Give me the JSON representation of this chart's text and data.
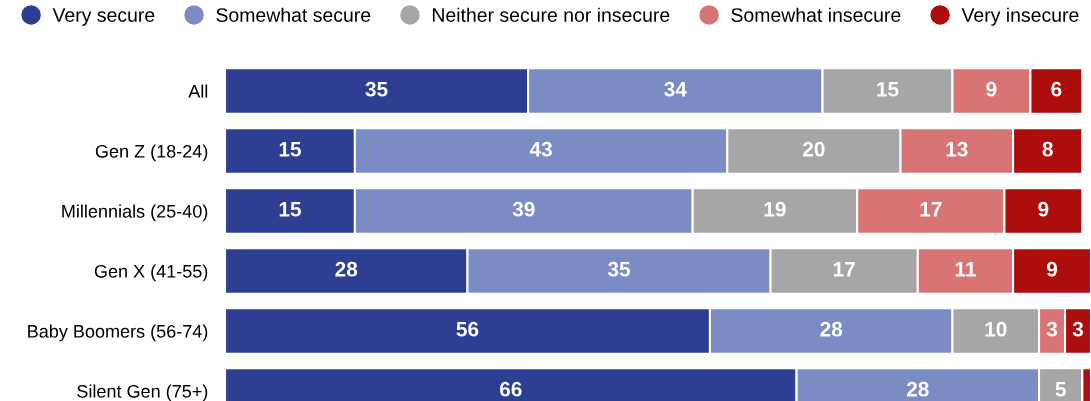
{
  "chart_data": {
    "type": "bar",
    "orientation": "horizontal",
    "stacked": true,
    "categories": [
      "All",
      "Gen Z (18-24)",
      "Millennials (25-40)",
      "Gen X (41-55)",
      "Baby Boomers (56-74)",
      "Silent Gen (75+)"
    ],
    "series": [
      {
        "name": "Very secure",
        "color": "#2e3f93",
        "values": [
          35,
          15,
          15,
          28,
          56,
          66
        ],
        "value_labels": [
          "35",
          "15",
          "15",
          "28",
          "56",
          "66"
        ]
      },
      {
        "name": "Somewhat secure",
        "color": "#7b8cc4",
        "values": [
          34,
          43,
          39,
          35,
          28,
          28
        ],
        "value_labels": [
          "34",
          "43",
          "39",
          "35",
          "28",
          "28"
        ]
      },
      {
        "name": "Neither secure nor insecure",
        "color": "#a6a6a6",
        "values": [
          15,
          20,
          19,
          17,
          10,
          5
        ],
        "value_labels": [
          "15",
          "20",
          "19",
          "17",
          "10",
          "5"
        ]
      },
      {
        "name": "Somewhat insecure",
        "color": "#d97474",
        "values": [
          9,
          13,
          17,
          11,
          3,
          0
        ],
        "value_labels": [
          "9",
          "13",
          "17",
          "11",
          "3",
          null
        ]
      },
      {
        "name": "Very insecure",
        "color": "#ad0d0d",
        "values": [
          6,
          8,
          9,
          9,
          3,
          1
        ],
        "value_labels": [
          "6",
          "8",
          "9",
          "9",
          "3",
          null
        ]
      }
    ],
    "xlim": [
      0,
      100
    ],
    "tick_labels": "y",
    "legend": "top",
    "grid": false
  }
}
